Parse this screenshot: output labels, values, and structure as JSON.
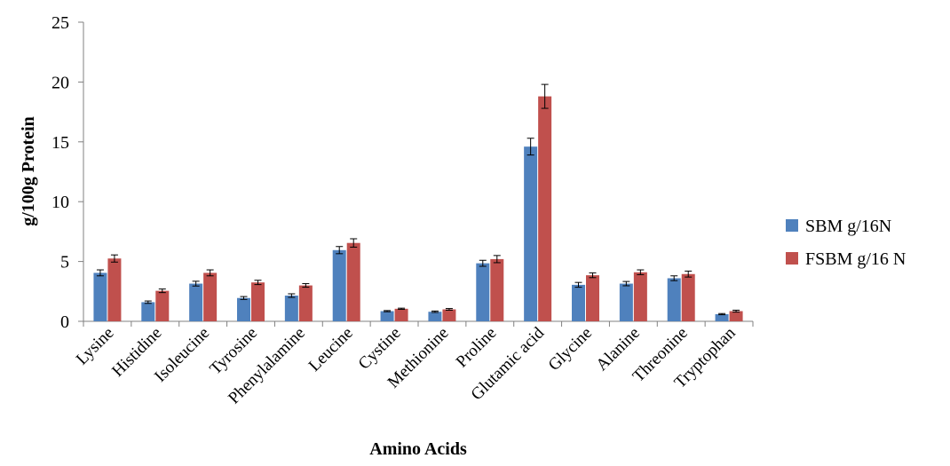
{
  "chart_data": {
    "type": "bar",
    "xlabel": "Amino Acids",
    "ylabel": "g/100g Protein",
    "ylim": [
      0,
      25
    ],
    "yticks": [
      0,
      5,
      10,
      15,
      20,
      25
    ],
    "grid": false,
    "legend_position": "right",
    "categories": [
      "Lysine",
      "Histidine",
      "Isoleucine",
      "Tyrosine",
      "Phenylalamine",
      "Leucine",
      "Cystine",
      "Methionine",
      "Proline",
      "Glutamic acid",
      "Glycine",
      "Alanine",
      "Threonine",
      "Tryptophan"
    ],
    "series": [
      {
        "name": "SBM g/16N",
        "color": "#4f81bd",
        "values": [
          4.05,
          1.6,
          3.15,
          1.95,
          2.15,
          5.95,
          0.85,
          0.8,
          4.85,
          14.6,
          3.05,
          3.15,
          3.6,
          0.6
        ],
        "errors": [
          0.25,
          0.1,
          0.2,
          0.12,
          0.15,
          0.3,
          0.05,
          0.06,
          0.25,
          0.7,
          0.2,
          0.18,
          0.2,
          0.05
        ]
      },
      {
        "name": "FSBM g/16 N",
        "color": "#c0504d",
        "values": [
          5.25,
          2.55,
          4.05,
          3.25,
          3.0,
          6.55,
          1.05,
          1.0,
          5.2,
          18.8,
          3.85,
          4.1,
          3.95,
          0.85
        ],
        "errors": [
          0.3,
          0.15,
          0.25,
          0.18,
          0.15,
          0.35,
          0.05,
          0.07,
          0.3,
          1.0,
          0.2,
          0.2,
          0.25,
          0.08
        ]
      }
    ]
  }
}
